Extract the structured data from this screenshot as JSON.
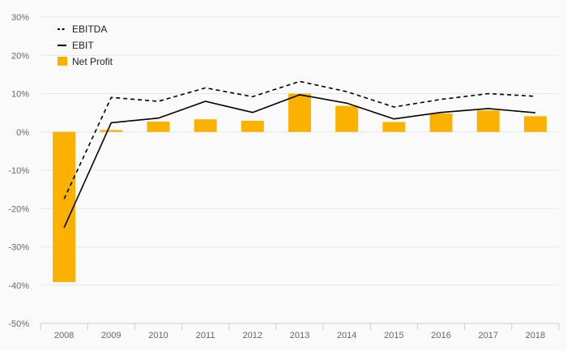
{
  "chart_data": {
    "type": "bar",
    "categories": [
      "2008",
      "2009",
      "2010",
      "2011",
      "2012",
      "2013",
      "2014",
      "2015",
      "2016",
      "2017",
      "2018"
    ],
    "series": [
      {
        "name": "Net Profit",
        "type": "bar",
        "values": [
          -39.2,
          0.5,
          2.7,
          3.3,
          2.9,
          10.0,
          6.8,
          2.6,
          4.8,
          5.6,
          4.1
        ]
      },
      {
        "name": "EBITDA",
        "type": "line",
        "style": "dashed",
        "values": [
          -17.5,
          9.0,
          8.0,
          11.5,
          9.2,
          13.2,
          10.5,
          6.5,
          8.5,
          10.0,
          9.3
        ]
      },
      {
        "name": "EBIT",
        "type": "line",
        "style": "solid",
        "values": [
          -25.0,
          2.4,
          3.6,
          8.0,
          5.1,
          9.7,
          7.5,
          3.4,
          5.1,
          6.1,
          5.0
        ]
      }
    ],
    "yticks": [
      "30%",
      "20%",
      "10%",
      "0%",
      "-10%",
      "-20%",
      "-30%",
      "-40%",
      "-50%"
    ],
    "ylim": [
      -50,
      30
    ],
    "y_unit": "%",
    "grid": true,
    "legend_position": "top-left",
    "colors": {
      "bar": "#fbb100",
      "line": "#000000",
      "grid": "#e6e6e6",
      "axis": "#cccccc"
    }
  }
}
